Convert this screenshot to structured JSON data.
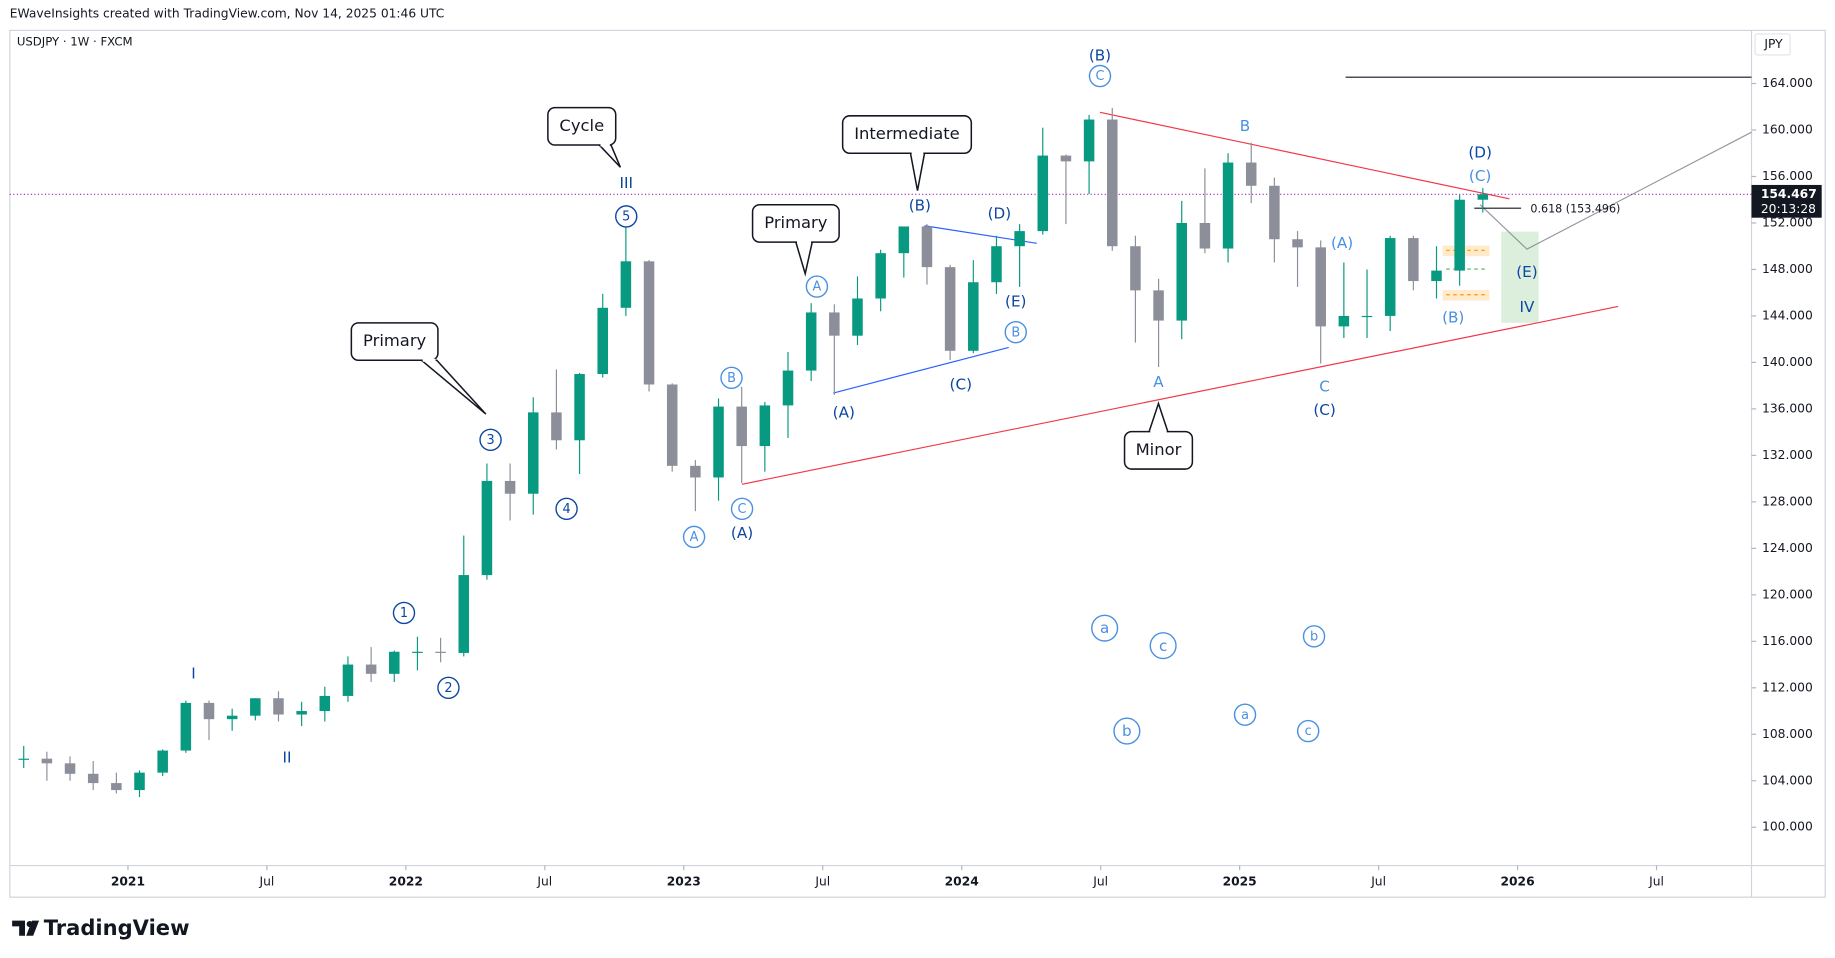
{
  "chart_data": {
    "type": "candlestick",
    "header": "EWaveInsights created with TradingView.com, Nov 14, 2025 01:46 UTC",
    "symbol": "USDJPY · 1W · FXCM",
    "currency": "JPY",
    "brand": "TradingView",
    "up_color": "#089981",
    "down_color": "#8c8f99",
    "x": [
      "2020-08",
      "2020-09",
      "2020-10",
      "2020-11",
      "2020-12",
      "2021-01",
      "2021-02",
      "2021-03",
      "2021-04",
      "2021-05",
      "2021-06",
      "2021-07",
      "2021-08",
      "2021-09",
      "2021-10",
      "2021-11",
      "2021-12",
      "2022-01",
      "2022-02",
      "2022-03",
      "2022-04",
      "2022-05",
      "2022-06",
      "2022-07",
      "2022-08",
      "2022-09",
      "2022-10",
      "2022-11",
      "2022-12",
      "2023-01",
      "2023-02",
      "2023-03",
      "2023-04",
      "2023-05",
      "2023-06",
      "2023-07",
      "2023-08",
      "2023-09",
      "2023-10",
      "2023-11",
      "2023-12",
      "2024-01",
      "2024-02",
      "2024-03",
      "2024-04",
      "2024-05",
      "2024-06",
      "2024-07",
      "2024-08",
      "2024-09",
      "2024-10",
      "2024-11",
      "2024-12",
      "2025-01",
      "2025-02",
      "2025-03",
      "2025-04",
      "2025-05",
      "2025-06",
      "2025-07",
      "2025-08",
      "2025-09",
      "2025-10",
      "2025-11"
    ],
    "open": [
      105.9,
      105.9,
      105.5,
      104.6,
      103.8,
      103.2,
      104.7,
      106.6,
      110.7,
      109.3,
      109.6,
      111.1,
      109.7,
      110.0,
      111.3,
      114.0,
      113.2,
      115.1,
      115.1,
      115.0,
      121.7,
      129.8,
      128.7,
      135.7,
      133.3,
      139.0,
      144.7,
      148.7,
      138.1,
      131.1,
      130.1,
      136.2,
      132.8,
      136.3,
      139.3,
      144.3,
      142.3,
      145.5,
      149.4,
      151.7,
      148.2,
      141.0,
      146.9,
      150.0,
      151.3,
      157.8,
      157.3,
      160.9,
      150.0,
      146.2,
      143.6,
      152.0,
      149.8,
      157.2,
      155.2,
      150.6,
      149.9,
      143.1,
      144.0,
      144.0,
      150.7,
      147.0,
      147.9,
      154.0
    ],
    "high": [
      107.0,
      106.5,
      106.1,
      105.7,
      104.7,
      104.9,
      106.7,
      110.9,
      110.9,
      110.2,
      111.1,
      111.7,
      110.8,
      112.1,
      114.7,
      115.5,
      115.2,
      116.4,
      116.3,
      125.1,
      131.3,
      131.3,
      137.0,
      139.4,
      139.1,
      145.9,
      151.9,
      148.8,
      138.2,
      131.6,
      136.9,
      137.9,
      136.6,
      140.9,
      145.1,
      145.0,
      147.4,
      149.7,
      151.7,
      151.9,
      148.4,
      148.8,
      150.9,
      151.9,
      160.2,
      157.9,
      161.3,
      161.9,
      150.9,
      147.2,
      153.9,
      156.7,
      158.0,
      158.9,
      155.9,
      151.3,
      150.5,
      148.6,
      148.0,
      150.9,
      150.9,
      150.0,
      154.4,
      155.0
    ],
    "low": [
      105.1,
      104.0,
      104.0,
      103.2,
      102.9,
      102.6,
      104.4,
      106.4,
      107.5,
      108.3,
      109.2,
      109.1,
      108.7,
      109.1,
      110.8,
      112.5,
      112.5,
      113.5,
      114.2,
      114.7,
      121.3,
      126.4,
      126.9,
      132.5,
      130.4,
      138.7,
      144.0,
      137.5,
      130.6,
      127.2,
      128.1,
      129.6,
      130.6,
      133.5,
      138.4,
      137.2,
      141.5,
      144.4,
      147.3,
      146.7,
      140.2,
      140.8,
      145.9,
      146.5,
      151.0,
      151.9,
      154.5,
      149.6,
      141.7,
      139.6,
      142.0,
      149.4,
      148.6,
      153.7,
      148.6,
      146.5,
      139.9,
      142.1,
      142.1,
      142.7,
      146.2,
      145.5,
      146.6,
      152.9
    ],
    "close": [
      105.9,
      105.5,
      104.6,
      103.8,
      103.2,
      104.7,
      106.6,
      110.7,
      109.3,
      109.6,
      111.1,
      109.7,
      110.0,
      111.3,
      114.0,
      113.2,
      115.1,
      115.1,
      115.0,
      121.7,
      129.8,
      128.7,
      135.7,
      133.3,
      139.0,
      144.7,
      148.7,
      138.1,
      131.1,
      130.1,
      136.2,
      132.8,
      136.3,
      139.3,
      144.3,
      142.3,
      145.5,
      149.4,
      151.7,
      148.2,
      141.0,
      146.9,
      150.0,
      151.3,
      157.8,
      157.3,
      160.9,
      150.0,
      146.2,
      143.6,
      152.0,
      149.8,
      157.2,
      155.2,
      150.6,
      149.9,
      143.1,
      144.0,
      144.0,
      150.7,
      147.0,
      147.9,
      154.0,
      154.467
    ],
    "ylim": [
      96.7,
      168.57
    ],
    "yticks": [
      {
        "value": 100,
        "label": "100.000"
      },
      {
        "value": 104,
        "label": "104.000"
      },
      {
        "value": 108,
        "label": "108.000"
      },
      {
        "value": 112,
        "label": "112.000"
      },
      {
        "value": 116,
        "label": "116.000"
      },
      {
        "value": 120,
        "label": "120.000"
      },
      {
        "value": 124,
        "label": "124.000"
      },
      {
        "value": 128,
        "label": "128.000"
      },
      {
        "value": 132,
        "label": "132.000"
      },
      {
        "value": 136,
        "label": "136.000"
      },
      {
        "value": 140,
        "label": "140.000"
      },
      {
        "value": 144,
        "label": "144.000"
      },
      {
        "value": 148,
        "label": "148.000"
      },
      {
        "value": 152,
        "label": "152.000"
      },
      {
        "value": 156,
        "label": "156.000"
      },
      {
        "value": 160,
        "label": "160.000"
      },
      {
        "value": 164,
        "label": "164.000"
      }
    ],
    "xticks": [
      {
        "value": "2021-01",
        "label": "2021"
      },
      {
        "value": "2021-07",
        "label": "Jul"
      },
      {
        "value": "2022-01",
        "label": "2022"
      },
      {
        "value": "2022-07",
        "label": "Jul"
      },
      {
        "value": "2023-01",
        "label": "2023"
      },
      {
        "value": "2023-07",
        "label": "Jul"
      },
      {
        "value": "2024-01",
        "label": "2024"
      },
      {
        "value": "2024-07",
        "label": "Jul"
      },
      {
        "value": "2025-01",
        "label": "2025"
      },
      {
        "value": "2025-07",
        "label": "Jul"
      },
      {
        "value": "2026-01",
        "label": "2026"
      },
      {
        "value": "2026-07",
        "label": "Jul"
      }
    ],
    "last_price": {
      "value": 154.467,
      "label": "154.467"
    },
    "countdown": "20:13:28",
    "fib_label": "0.618 (153.496)",
    "wave_labels": [
      "(B)",
      "III",
      "I",
      "II",
      "(A)",
      "(B)",
      "(D)",
      "(E)",
      "(C)",
      "(A)",
      "B",
      "A",
      "C",
      "(C)",
      "(A)",
      "(B)",
      "(D)",
      "(C)",
      "(E)",
      "IV"
    ],
    "circled_labels": [
      "C",
      "5",
      "3",
      "4",
      "1",
      "2",
      "A",
      "B",
      "C",
      "A",
      "B",
      "a",
      "c",
      "b",
      "a",
      "b",
      "c"
    ],
    "callouts": [
      "Cycle",
      "Primary",
      "Intermediate",
      "Primary",
      "Minor"
    ]
  }
}
